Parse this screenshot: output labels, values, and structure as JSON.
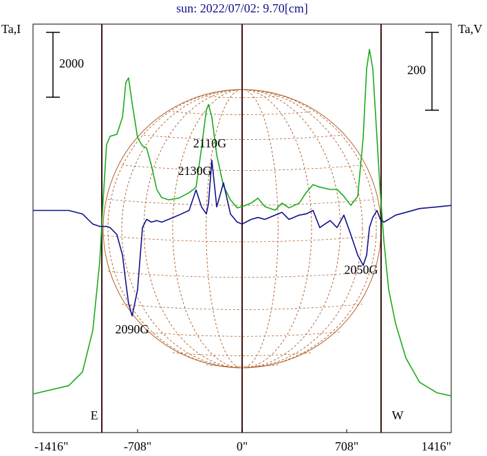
{
  "chart_data": {
    "type": "line",
    "title": "sun: 2022/07/02: 9.70[cm]",
    "ylabel": "Ta,I",
    "y2label": "Ta,V",
    "x": [
      -1416,
      -1174,
      -1081,
      -1011,
      -964,
      -941,
      -918,
      -894,
      -848,
      -810,
      -787,
      -769,
      -745,
      -708,
      -675,
      -647,
      -615,
      -578,
      -545,
      -498,
      -429,
      -359,
      -312,
      -275,
      -242,
      -228,
      -205,
      -172,
      -126,
      -79,
      -33,
      0,
      61,
      107,
      154,
      224,
      270,
      317,
      387,
      433,
      480,
      526,
      596,
      643,
      689,
      736,
      783,
      820,
      843,
      862,
      885,
      913,
      936,
      960,
      992,
      1039,
      1109,
      1202,
      1318,
      1416
    ],
    "series": [
      {
        "name": "I",
        "color": "#1aaa1a",
        "axis": "y",
        "values": [
          1190,
          1450,
          1870,
          3150,
          5270,
          7180,
          8880,
          9140,
          9200,
          9730,
          10800,
          10940,
          10160,
          9100,
          8840,
          8780,
          8250,
          7500,
          7250,
          7180,
          7230,
          7400,
          7570,
          8780,
          9950,
          10120,
          9730,
          8560,
          7610,
          7180,
          6930,
          6970,
          7080,
          7230,
          6970,
          6860,
          7080,
          6930,
          7080,
          7400,
          7650,
          7570,
          7500,
          7500,
          7290,
          7010,
          7290,
          9100,
          11220,
          11820,
          11220,
          9100,
          7400,
          5910,
          4420,
          3360,
          2300,
          1550,
          1230,
          1130
        ]
      },
      {
        "name": "V",
        "color": "#10108a",
        "axis": "y2",
        "values": [
          -9,
          -9,
          -18,
          -44,
          -50,
          -50,
          -50,
          -53,
          -71,
          -124,
          -195,
          -248,
          -280,
          -213,
          -53,
          -32,
          -39,
          -35,
          -39,
          -32,
          -21,
          -9,
          44,
          0,
          -18,
          9,
          120,
          0,
          62,
          -18,
          -39,
          -44,
          -32,
          -27,
          -32,
          -21,
          -14,
          -32,
          -21,
          -18,
          -9,
          -53,
          -35,
          -53,
          -21,
          -71,
          -124,
          -150,
          -124,
          -53,
          -27,
          -9,
          -32,
          -39,
          -32,
          -21,
          -14,
          -4,
          0,
          4
        ]
      }
    ],
    "xlim": [
      -1416,
      1416
    ],
    "xticks": [
      {
        "value": -1416,
        "label": "-1416\""
      },
      {
        "value": -708,
        "label": "-708\""
      },
      {
        "value": 0,
        "label": "0\""
      },
      {
        "value": 708,
        "label": "708\""
      },
      {
        "value": 1416,
        "label": "1416\""
      }
    ],
    "ylim": [
      0,
      12600
    ],
    "y2lim": [
      -580,
      470
    ],
    "scale_bars": [
      {
        "value": 2000,
        "axis": "y"
      },
      {
        "value": 200,
        "axis": "y2"
      }
    ],
    "vlines": [
      -950,
      0,
      941
    ],
    "annotations": [
      {
        "text": "2110G",
        "x": -219,
        "y": 8880
      },
      {
        "text": "2130G",
        "x": -321,
        "y": 8030
      },
      {
        "text": "2090G",
        "x": -745,
        "y": 3150
      },
      {
        "text": "2050G",
        "x": 806,
        "y": 4990
      },
      {
        "text": "E",
        "x": -1001,
        "y": 490
      },
      {
        "text": "W",
        "x": 1053,
        "y": 490
      }
    ]
  }
}
